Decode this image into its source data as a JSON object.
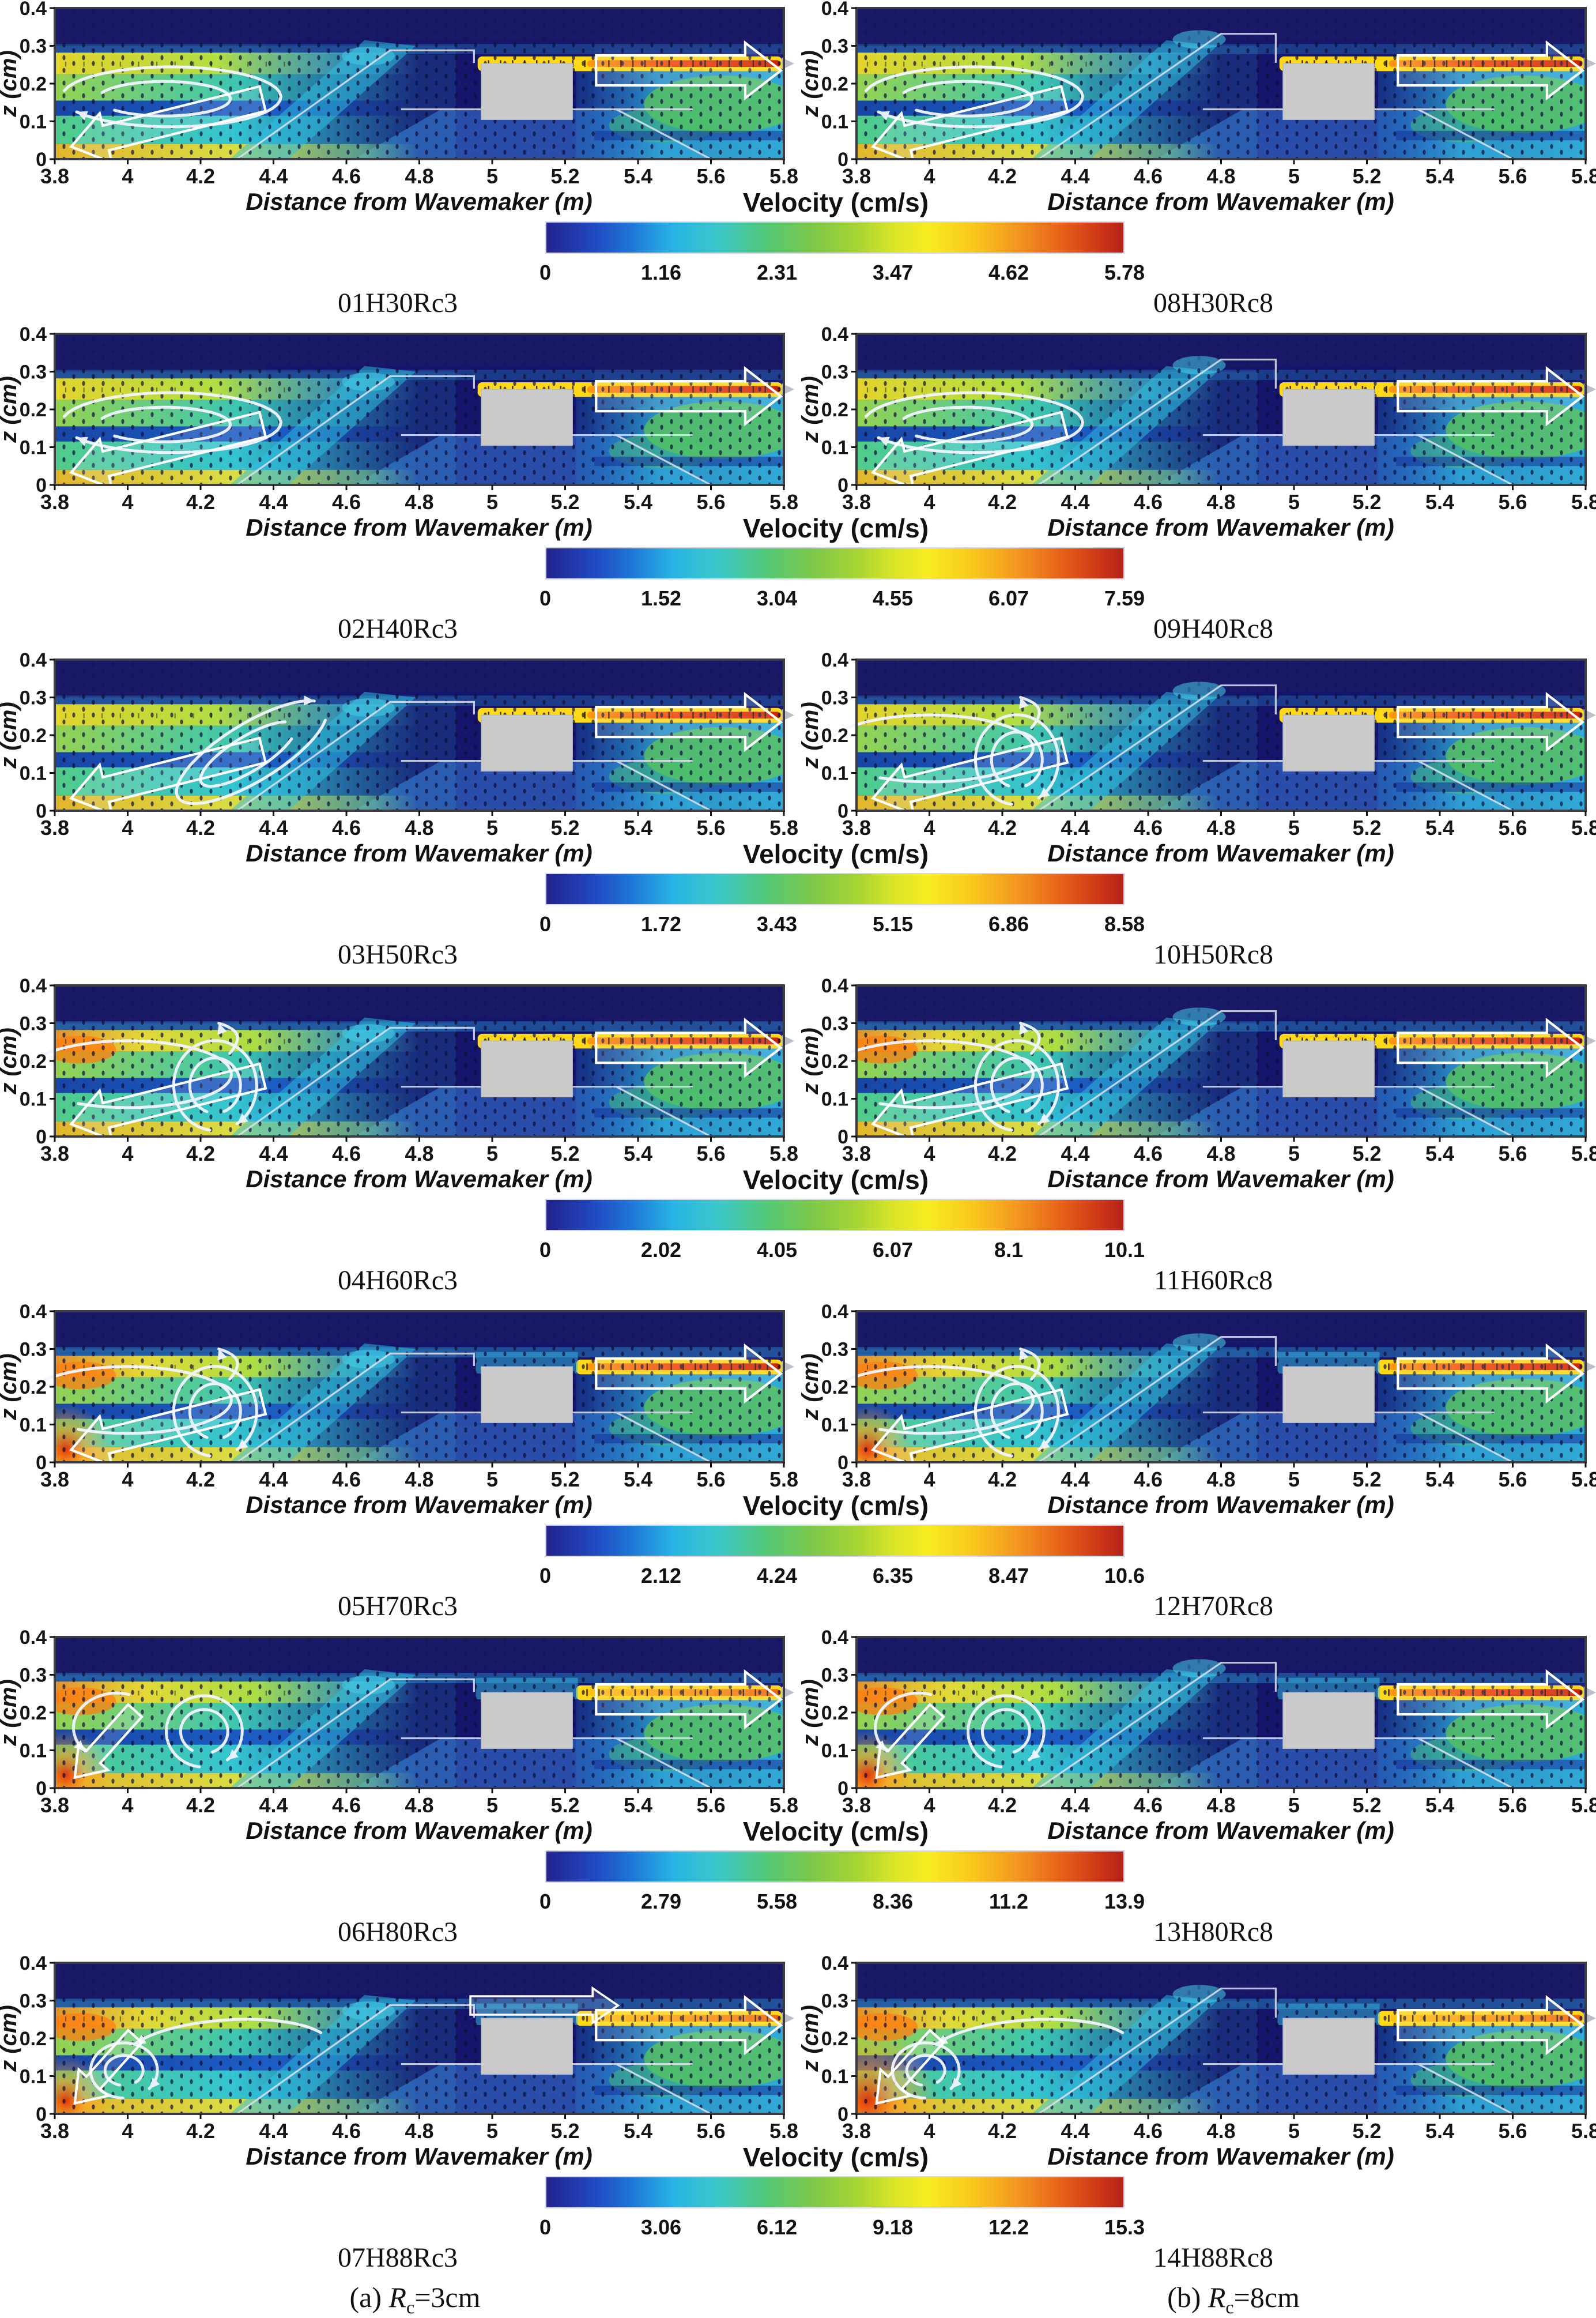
{
  "axis": {
    "xlabel": "Distance from Wavemaker (m)",
    "ylabel": "z (cm)",
    "xticks": [
      "3.8",
      "4",
      "4.2",
      "4.4",
      "4.6",
      "4.8",
      "5",
      "5.2",
      "5.4",
      "5.6",
      "5.8"
    ],
    "yticks": [
      "0",
      "0.1",
      "0.2",
      "0.3",
      "0.4"
    ]
  },
  "colorbar_title": "Velocity (cm/s)",
  "captions": {
    "a": {
      "index": "(a) ",
      "symbol": "R",
      "subscript": "c",
      "suffix": "=3cm"
    },
    "b": {
      "index": "(b) ",
      "symbol": "R",
      "subscript": "c",
      "suffix": "=8cm"
    }
  },
  "rows": [
    {
      "cbar_ticks": [
        "0",
        "1.16",
        "2.31",
        "3.47",
        "4.62",
        "5.78"
      ],
      "left": {
        "label": "01H30Rc3",
        "render": {
          "vortex": "loop",
          "crest": "low",
          "hot": false,
          "red_corner": false,
          "red_big": false,
          "over_box": "jet",
          "core": "red",
          "top_arrow2": false
        }
      },
      "right": {
        "label": "08H30Rc8",
        "render": {
          "vortex": "loop",
          "crest": "high",
          "hot": false,
          "red_corner": false,
          "red_big": false,
          "over_box": "jet",
          "core": "red",
          "top_arrow2": false
        }
      }
    },
    {
      "cbar_ticks": [
        "0",
        "1.52",
        "3.04",
        "4.55",
        "6.07",
        "7.59"
      ],
      "left": {
        "label": "02H40Rc3",
        "render": {
          "vortex": "loop",
          "crest": "low",
          "hot": false,
          "red_corner": false,
          "red_big": false,
          "over_box": "jet",
          "core": "red",
          "top_arrow2": false
        }
      },
      "right": {
        "label": "09H40Rc8",
        "render": {
          "vortex": "loop",
          "crest": "high",
          "hot": false,
          "red_corner": false,
          "red_big": false,
          "over_box": "jet",
          "core": "red",
          "top_arrow2": false
        }
      }
    },
    {
      "cbar_ticks": [
        "0",
        "1.72",
        "3.43",
        "5.15",
        "6.86",
        "8.58"
      ],
      "left": {
        "label": "03H50Rc3",
        "render": {
          "vortex": "tilt",
          "crest": "low",
          "hot": false,
          "red_corner": false,
          "red_big": false,
          "over_box": "jet",
          "core": "red",
          "top_arrow2": false
        }
      },
      "right": {
        "label": "10H50Rc8",
        "render": {
          "vortex": "spiral",
          "crest": "high",
          "hot": false,
          "red_corner": false,
          "red_big": false,
          "over_box": "jet",
          "core": "red",
          "top_arrow2": false
        }
      }
    },
    {
      "cbar_ticks": [
        "0",
        "2.02",
        "4.05",
        "6.07",
        "8.1",
        "10.1"
      ],
      "left": {
        "label": "04H60Rc3",
        "render": {
          "vortex": "spiral",
          "crest": "low",
          "hot": true,
          "red_corner": false,
          "red_big": false,
          "over_box": "jet",
          "core": "red",
          "top_arrow2": false
        }
      },
      "right": {
        "label": "11H60Rc8",
        "render": {
          "vortex": "spiral",
          "crest": "high",
          "hot": true,
          "red_corner": false,
          "red_big": false,
          "over_box": "jet",
          "core": "red",
          "top_arrow2": false
        }
      }
    },
    {
      "cbar_ticks": [
        "0",
        "2.12",
        "4.24",
        "6.35",
        "8.47",
        "10.6"
      ],
      "left": {
        "label": "05H70Rc3",
        "render": {
          "vortex": "spiral",
          "crest": "low",
          "hot": true,
          "red_corner": true,
          "red_big": false,
          "over_box": "cyan",
          "core": "red",
          "top_arrow2": false
        }
      },
      "right": {
        "label": "12H70Rc8",
        "render": {
          "vortex": "spiral",
          "crest": "high",
          "hot": true,
          "red_corner": true,
          "red_big": false,
          "over_box": "cyan",
          "core": "red",
          "top_arrow2": false
        }
      }
    },
    {
      "cbar_ticks": [
        "0",
        "2.79",
        "5.58",
        "8.36",
        "11.2",
        "13.9"
      ],
      "left": {
        "label": "06H80Rc3",
        "render": {
          "vortex": "circleCorner",
          "crest": "low",
          "hot": true,
          "red_corner": true,
          "red_big": false,
          "over_box": "cyan",
          "core": "orange",
          "top_arrow2": false
        }
      },
      "right": {
        "label": "13H80Rc8",
        "render": {
          "vortex": "circleCorner",
          "crest": "high",
          "hot": true,
          "red_corner": true,
          "red_big": false,
          "over_box": "cyan",
          "core": "red",
          "top_arrow2": false
        }
      }
    },
    {
      "cbar_ticks": [
        "0",
        "3.06",
        "6.12",
        "9.18",
        "12.2",
        "15.3"
      ],
      "left": {
        "label": "07H88Rc3",
        "render": {
          "vortex": "cornerSwirl",
          "crest": "low",
          "hot": true,
          "red_corner": true,
          "red_big": false,
          "over_box": "cyan",
          "core": "orange",
          "top_arrow2": true
        }
      },
      "right": {
        "label": "14H88Rc8",
        "render": {
          "vortex": "cornerSwirl",
          "crest": "high",
          "hot": true,
          "red_corner": true,
          "red_big": true,
          "over_box": "cyan",
          "core": "orange",
          "top_arrow2": false
        }
      }
    }
  ],
  "chart_data": {
    "type": "heatmap",
    "layout": "7 rows x 2 columns of 2D time-averaged velocity-magnitude contour maps with overlaid velocity vectors and white mean-flow/vortex arrows",
    "x": {
      "label": "Distance from Wavemaker (m)",
      "range": [
        3.8,
        5.8
      ],
      "ticks": [
        3.8,
        4,
        4.2,
        4.4,
        4.6,
        4.8,
        5,
        5.2,
        5.4,
        5.6,
        5.8
      ]
    },
    "y": {
      "label": "z (cm)",
      "range": [
        0,
        0.4
      ],
      "ticks": [
        0,
        0.1,
        0.2,
        0.3,
        0.4
      ]
    },
    "colormap": "jet (dark blue - cyan - green - yellow - orange - dark red)",
    "colorbar_title": "Velocity (cm/s)",
    "columns": [
      {
        "caption": "(a) Rc=3cm"
      },
      {
        "caption": "(b) Rc=8cm"
      }
    ],
    "panels": [
      {
        "id": "01H30Rc3",
        "column": "a",
        "row": 1,
        "velocity_min": 0,
        "velocity_max": 5.78,
        "velocity_ticks": [
          0,
          1.16,
          2.31,
          3.47,
          4.62,
          5.78
        ]
      },
      {
        "id": "08H30Rc8",
        "column": "b",
        "row": 1,
        "velocity_min": 0,
        "velocity_max": 5.78,
        "velocity_ticks": [
          0,
          1.16,
          2.31,
          3.47,
          4.62,
          5.78
        ]
      },
      {
        "id": "02H40Rc3",
        "column": "a",
        "row": 2,
        "velocity_min": 0,
        "velocity_max": 7.59,
        "velocity_ticks": [
          0,
          1.52,
          3.04,
          4.55,
          6.07,
          7.59
        ]
      },
      {
        "id": "09H40Rc8",
        "column": "b",
        "row": 2,
        "velocity_min": 0,
        "velocity_max": 7.59,
        "velocity_ticks": [
          0,
          1.52,
          3.04,
          4.55,
          6.07,
          7.59
        ]
      },
      {
        "id": "03H50Rc3",
        "column": "a",
        "row": 3,
        "velocity_min": 0,
        "velocity_max": 8.58,
        "velocity_ticks": [
          0,
          1.72,
          3.43,
          5.15,
          6.86,
          8.58
        ]
      },
      {
        "id": "10H50Rc8",
        "column": "b",
        "row": 3,
        "velocity_min": 0,
        "velocity_max": 8.58,
        "velocity_ticks": [
          0,
          1.72,
          3.43,
          5.15,
          6.86,
          8.58
        ]
      },
      {
        "id": "04H60Rc3",
        "column": "a",
        "row": 4,
        "velocity_min": 0,
        "velocity_max": 10.1,
        "velocity_ticks": [
          0,
          2.02,
          4.05,
          6.07,
          8.1,
          10.1
        ]
      },
      {
        "id": "11H60Rc8",
        "column": "b",
        "row": 4,
        "velocity_min": 0,
        "velocity_max": 10.1,
        "velocity_ticks": [
          0,
          2.02,
          4.05,
          6.07,
          8.1,
          10.1
        ]
      },
      {
        "id": "05H70Rc3",
        "column": "a",
        "row": 5,
        "velocity_min": 0,
        "velocity_max": 10.6,
        "velocity_ticks": [
          0,
          2.12,
          4.24,
          6.35,
          8.47,
          10.6
        ]
      },
      {
        "id": "12H70Rc8",
        "column": "b",
        "row": 5,
        "velocity_min": 0,
        "velocity_max": 10.6,
        "velocity_ticks": [
          0,
          2.12,
          4.24,
          6.35,
          8.47,
          10.6
        ]
      },
      {
        "id": "06H80Rc3",
        "column": "a",
        "row": 6,
        "velocity_min": 0,
        "velocity_max": 13.9,
        "velocity_ticks": [
          0,
          2.79,
          5.58,
          8.36,
          11.2,
          13.9
        ]
      },
      {
        "id": "13H80Rc8",
        "column": "b",
        "row": 6,
        "velocity_min": 0,
        "velocity_max": 13.9,
        "velocity_ticks": [
          0,
          2.79,
          5.58,
          8.36,
          11.2,
          13.9
        ]
      },
      {
        "id": "07H88Rc3",
        "column": "a",
        "row": 7,
        "velocity_min": 0,
        "velocity_max": 15.3,
        "velocity_ticks": [
          0,
          3.06,
          6.12,
          9.18,
          12.2,
          15.3
        ]
      },
      {
        "id": "14H88Rc8",
        "column": "b",
        "row": 7,
        "velocity_min": 0,
        "velocity_max": 15.3,
        "velocity_ticks": [
          0,
          3.06,
          6.12,
          9.18,
          12.2,
          15.3
        ]
      }
    ],
    "features": [
      "submerged trapezoidal breakwater outline between x=4.3 and x=5.6 with gray crown block at x=5.0-5.2, z=0.1-0.25",
      "leftward return-flow block arrow near x=3.8-4.35",
      "recirculation vortex (white curved arrows) on the wavemaker side, strengthening from row 1 to row 7",
      "rightward transmitted-jet block arrow with high-velocity red core at z=0.25 for x>5.2",
      "column (b) breakwater crest outline is higher (Rc=8cm) than column (a) (Rc=3cm)"
    ]
  }
}
